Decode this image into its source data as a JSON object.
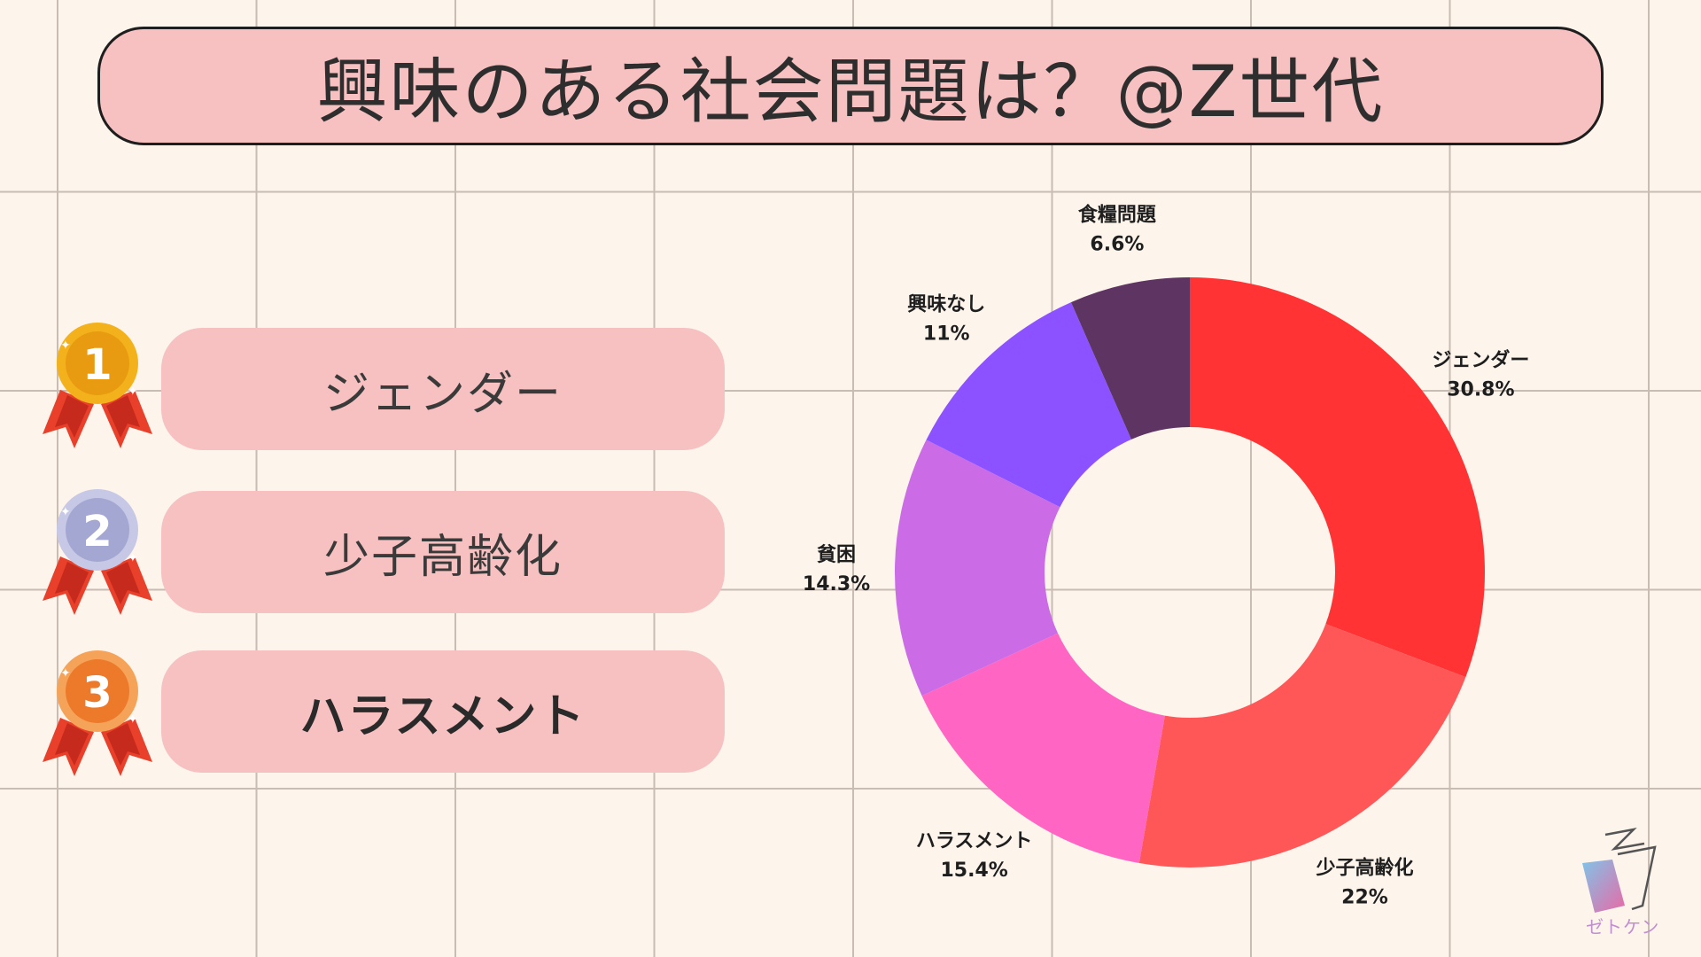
{
  "title": "興味のある社会問題は？@Z世代",
  "ranking": [
    {
      "rank": "1",
      "label": "ジェンダー",
      "medal_color": "#f3b21c"
    },
    {
      "rank": "2",
      "label": "少子高齢化",
      "medal_color": "#b6b9dc"
    },
    {
      "rank": "3",
      "label": "ハラスメント",
      "medal_color": "#f08a3c"
    }
  ],
  "chart_data": {
    "type": "pie",
    "variant": "donut",
    "title": "",
    "categories": [
      "ジェンダー",
      "少子高齢化",
      "ハラスメント",
      "貧困",
      "興味なし",
      "食糧問題"
    ],
    "values": [
      30.8,
      22,
      15.4,
      14.3,
      11,
      6.6
    ],
    "value_labels": [
      "30.8%",
      "22%",
      "15.4%",
      "14.3%",
      "11%",
      "6.6%"
    ],
    "colors": [
      "#ff3333",
      "#ff5757",
      "#ff66c4",
      "#cb6ce6",
      "#8c52ff",
      "#5e3462"
    ],
    "start": "top, clockwise",
    "legend": "none (labels outside slices)"
  },
  "logo": {
    "text": "ゼトケン"
  }
}
